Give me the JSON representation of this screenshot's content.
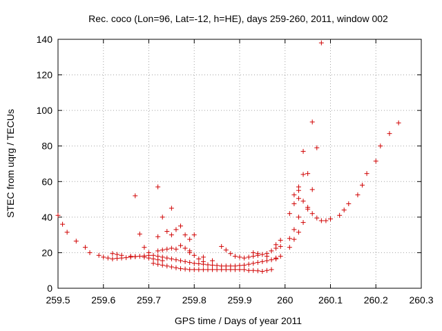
{
  "chart_data": {
    "type": "scatter",
    "title": "Rec. coco (Lon=96, Lat=-12, h=HE), days 259-260, 2011, window 002",
    "xlabel": "GPS time / Days of year 2011",
    "ylabel": "STEC from uqrg / TECUs",
    "xlim": [
      259.5,
      260.3
    ],
    "ylim": [
      0,
      140
    ],
    "xticks": [
      259.5,
      259.6,
      259.7,
      259.8,
      259.9,
      260,
      260.1,
      260.2,
      260.3
    ],
    "xtick_labels": [
      "259.5",
      "259.6",
      "259.7",
      "259.8",
      "259.9",
      "260",
      "260.1",
      "260.2",
      "260.3"
    ],
    "yticks": [
      0,
      20,
      40,
      60,
      80,
      100,
      120,
      140
    ],
    "ytick_labels": [
      "0",
      "20",
      "40",
      "60",
      "80",
      "100",
      "120",
      "140"
    ],
    "grid": true,
    "marker": "+",
    "color": "#d00000",
    "points": [
      [
        259.5,
        41.0
      ],
      [
        259.51,
        36.0
      ],
      [
        259.52,
        31.5
      ],
      [
        259.54,
        26.5
      ],
      [
        259.56,
        23.0
      ],
      [
        259.57,
        20.0
      ],
      [
        259.59,
        18.5
      ],
      [
        259.6,
        17.5
      ],
      [
        259.61,
        17.0
      ],
      [
        259.62,
        16.5
      ],
      [
        259.63,
        16.8
      ],
      [
        259.64,
        17.0
      ],
      [
        259.65,
        17.2
      ],
      [
        259.66,
        17.5
      ],
      [
        259.67,
        17.8
      ],
      [
        259.68,
        18.0
      ],
      [
        259.69,
        18.2
      ],
      [
        259.7,
        18.5
      ],
      [
        259.62,
        19.5
      ],
      [
        259.63,
        19.0
      ],
      [
        259.64,
        18.5
      ],
      [
        259.66,
        18.0
      ],
      [
        259.67,
        17.8
      ],
      [
        259.69,
        17.5
      ],
      [
        259.7,
        17.0
      ],
      [
        259.71,
        16.5
      ],
      [
        259.72,
        16.0
      ],
      [
        259.73,
        15.5
      ],
      [
        259.67,
        52.0
      ],
      [
        259.68,
        30.5
      ],
      [
        259.69,
        23.0
      ],
      [
        259.7,
        20.0
      ],
      [
        259.71,
        18.5
      ],
      [
        259.72,
        57.0
      ],
      [
        259.72,
        29.0
      ],
      [
        259.73,
        40.0
      ],
      [
        259.74,
        32.0
      ],
      [
        259.75,
        45.0
      ],
      [
        259.75,
        30.0
      ],
      [
        259.76,
        33.0
      ],
      [
        259.77,
        35.0
      ],
      [
        259.78,
        30.0
      ],
      [
        259.79,
        27.5
      ],
      [
        259.79,
        21.0
      ],
      [
        259.8,
        30.0
      ],
      [
        259.72,
        21.0
      ],
      [
        259.73,
        21.5
      ],
      [
        259.74,
        22.0
      ],
      [
        259.75,
        22.5
      ],
      [
        259.76,
        22.0
      ],
      [
        259.77,
        24.0
      ],
      [
        259.78,
        22.5
      ],
      [
        259.79,
        20.0
      ],
      [
        259.8,
        18.5
      ],
      [
        259.81,
        16.5
      ],
      [
        259.82,
        15.0
      ],
      [
        259.71,
        14.0
      ],
      [
        259.72,
        13.5
      ],
      [
        259.73,
        13.0
      ],
      [
        259.74,
        12.5
      ],
      [
        259.75,
        12.0
      ],
      [
        259.76,
        11.5
      ],
      [
        259.77,
        11.0
      ],
      [
        259.78,
        10.8
      ],
      [
        259.79,
        10.5
      ],
      [
        259.8,
        10.5
      ],
      [
        259.81,
        10.5
      ],
      [
        259.82,
        10.5
      ],
      [
        259.83,
        10.5
      ],
      [
        259.84,
        10.5
      ],
      [
        259.85,
        10.5
      ],
      [
        259.86,
        10.5
      ],
      [
        259.87,
        10.5
      ],
      [
        259.88,
        10.5
      ],
      [
        259.89,
        10.5
      ],
      [
        259.9,
        10.5
      ],
      [
        259.91,
        10.5
      ],
      [
        259.92,
        10.0
      ],
      [
        259.93,
        10.0
      ],
      [
        259.94,
        9.8
      ],
      [
        259.95,
        9.5
      ],
      [
        259.96,
        10.0
      ],
      [
        259.97,
        10.5
      ],
      [
        259.72,
        18.0
      ],
      [
        259.73,
        17.5
      ],
      [
        259.74,
        17.0
      ],
      [
        259.75,
        16.5
      ],
      [
        259.76,
        16.0
      ],
      [
        259.77,
        15.5
      ],
      [
        259.78,
        15.0
      ],
      [
        259.79,
        14.5
      ],
      [
        259.8,
        14.0
      ],
      [
        259.81,
        13.8
      ],
      [
        259.82,
        13.5
      ],
      [
        259.83,
        13.2
      ],
      [
        259.84,
        13.0
      ],
      [
        259.85,
        12.8
      ],
      [
        259.86,
        12.5
      ],
      [
        259.87,
        12.5
      ],
      [
        259.88,
        12.5
      ],
      [
        259.89,
        12.5
      ],
      [
        259.9,
        12.8
      ],
      [
        259.91,
        13.0
      ],
      [
        259.92,
        13.5
      ],
      [
        259.93,
        14.0
      ],
      [
        259.94,
        14.5
      ],
      [
        259.95,
        15.0
      ],
      [
        259.96,
        15.5
      ],
      [
        259.97,
        16.0
      ],
      [
        259.98,
        16.5
      ],
      [
        259.82,
        17.5
      ],
      [
        259.84,
        15.5
      ],
      [
        259.86,
        23.5
      ],
      [
        259.87,
        21.5
      ],
      [
        259.88,
        19.5
      ],
      [
        259.89,
        18.0
      ],
      [
        259.9,
        17.5
      ],
      [
        259.91,
        17.0
      ],
      [
        259.92,
        17.5
      ],
      [
        259.93,
        18.0
      ],
      [
        259.94,
        18.5
      ],
      [
        259.95,
        19.0
      ],
      [
        259.96,
        19.5
      ],
      [
        259.97,
        21.0
      ],
      [
        259.98,
        22.5
      ],
      [
        259.99,
        23.5
      ],
      [
        259.98,
        24.5
      ],
      [
        259.99,
        27.0
      ],
      [
        259.99,
        18.0
      ],
      [
        259.98,
        17.0
      ],
      [
        259.96,
        18.0
      ],
      [
        259.94,
        19.5
      ],
      [
        259.93,
        20.0
      ],
      [
        260.01,
        42.0
      ],
      [
        260.01,
        28.0
      ],
      [
        260.01,
        23.0
      ],
      [
        260.02,
        52.5
      ],
      [
        260.02,
        47.5
      ],
      [
        260.02,
        33.0
      ],
      [
        260.02,
        27.5
      ],
      [
        260.03,
        57.0
      ],
      [
        260.03,
        55.0
      ],
      [
        260.03,
        50.5
      ],
      [
        260.03,
        40.0
      ],
      [
        260.03,
        31.5
      ],
      [
        260.04,
        77.0
      ],
      [
        260.04,
        64.0
      ],
      [
        260.04,
        49.0
      ],
      [
        260.04,
        37.0
      ],
      [
        260.05,
        64.5
      ],
      [
        260.05,
        45.5
      ],
      [
        260.05,
        44.5
      ],
      [
        260.06,
        93.5
      ],
      [
        260.06,
        55.5
      ],
      [
        260.07,
        79.0
      ],
      [
        260.06,
        42.0
      ],
      [
        260.07,
        39.5
      ],
      [
        260.08,
        138.0
      ],
      [
        260.08,
        38.0
      ],
      [
        260.09,
        38.0
      ],
      [
        260.1,
        39.0
      ],
      [
        260.12,
        41.0
      ],
      [
        260.13,
        44.0
      ],
      [
        260.14,
        47.5
      ],
      [
        260.16,
        52.5
      ],
      [
        260.17,
        58.0
      ],
      [
        260.18,
        64.5
      ],
      [
        260.2,
        71.5
      ],
      [
        260.21,
        80.0
      ],
      [
        260.23,
        87.0
      ],
      [
        260.25,
        93.0
      ]
    ]
  }
}
